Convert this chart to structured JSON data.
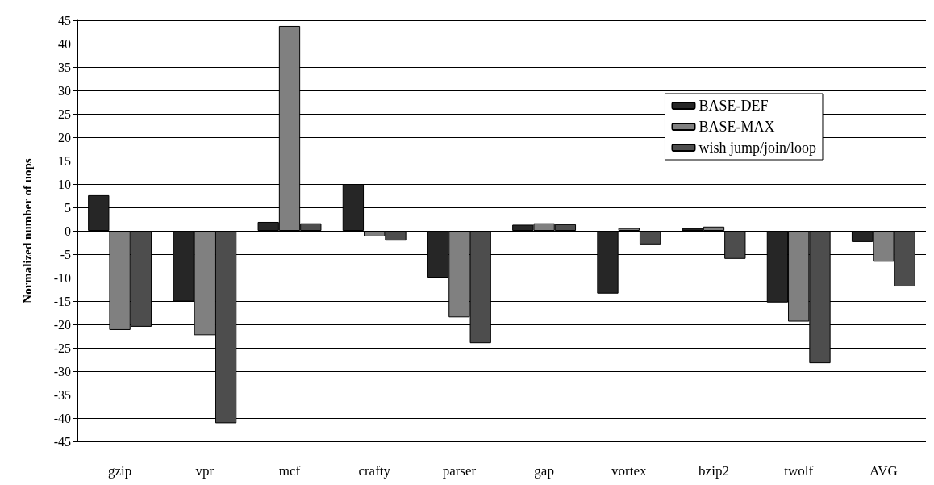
{
  "chart_data": {
    "type": "bar",
    "ylabel": "Normalized number of uops",
    "categories": [
      "gzip",
      "vpr",
      "mcf",
      "crafty",
      "parser",
      "gap",
      "vortex",
      "bzip2",
      "twolf",
      "AVG"
    ],
    "series": [
      {
        "name": "BASE-DEF",
        "color": "#262626",
        "values": [
          7.6,
          -15.1,
          1.9,
          10,
          -10,
          1.3,
          -13.4,
          0.5,
          -15.3,
          -2.4
        ]
      },
      {
        "name": "BASE-MAX",
        "color": "#808080",
        "values": [
          -21.2,
          -22.3,
          43.8,
          -1.2,
          -18.5,
          1.6,
          0.6,
          0.9,
          -19.4,
          -6.6
        ]
      },
      {
        "name": "wish jump/join/loop",
        "color": "#4d4d4d",
        "values": [
          -20.5,
          -41.1,
          1.6,
          -2.1,
          -24,
          1.4,
          -2.9,
          -6,
          -28.3,
          -11.9
        ]
      }
    ],
    "ylim": [
      -45,
      45
    ],
    "yticks": [
      -45,
      -40,
      -35,
      -30,
      -25,
      -20,
      -15,
      -10,
      -5,
      0,
      5,
      10,
      15,
      20,
      25,
      30,
      35,
      40,
      45
    ],
    "grid": "y",
    "legend": "right"
  }
}
